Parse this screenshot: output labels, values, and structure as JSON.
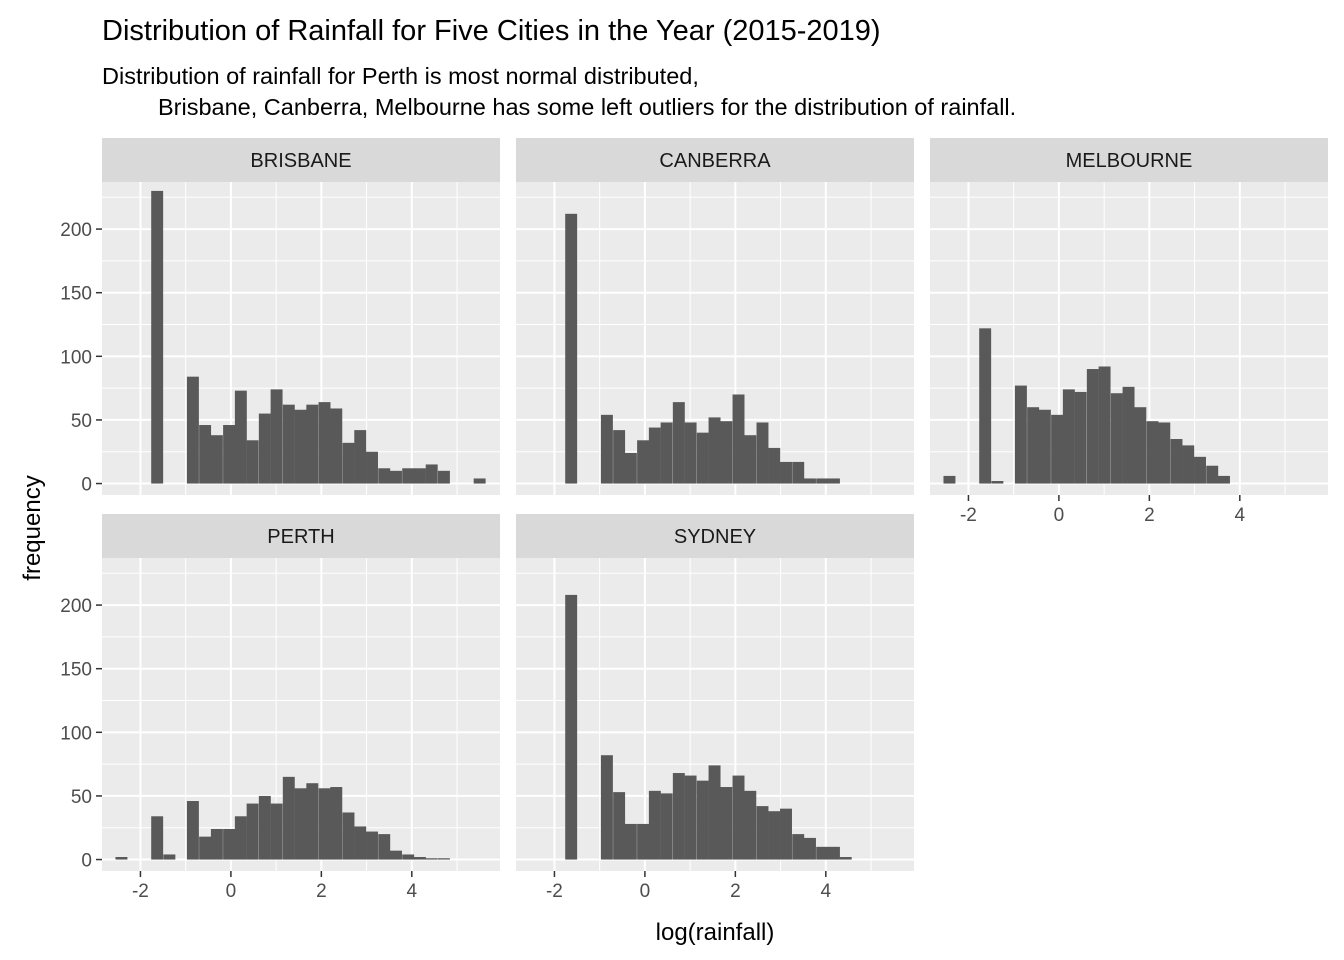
{
  "chart_data": {
    "type": "histogram",
    "layout": "facet_wrap",
    "title": "Distribution of Rainfall for Five Cities in the Year (2015-2019)",
    "subtitle_lines": [
      "Distribution of rainfall for Perth is most normal distributed,",
      "Brisbane, Canberra, Melbourne has some left outliers for the distribution of rainfall."
    ],
    "xlabel": "log(rainfall)",
    "ylabel": "frequency",
    "xlim": [
      -2.85,
      5.95
    ],
    "ylim": [
      -9,
      237
    ],
    "x_ticks": [
      -2,
      0,
      2,
      4
    ],
    "x_tick_labels": [
      "-2",
      "0",
      "2",
      "4"
    ],
    "y_ticks": [
      0,
      50,
      100,
      150,
      200
    ],
    "y_tick_labels": [
      "0",
      "50",
      "100",
      "150",
      "200"
    ],
    "bin_width": 0.264,
    "bin_centers": [
      -2.42,
      -2.16,
      -1.89,
      -1.63,
      -1.36,
      -1.1,
      -0.84,
      -0.57,
      -0.31,
      -0.04,
      0.22,
      0.48,
      0.75,
      1.01,
      1.28,
      1.54,
      1.8,
      2.07,
      2.33,
      2.6,
      2.86,
      3.12,
      3.39,
      3.65,
      3.92,
      4.18,
      4.44,
      4.71,
      4.97,
      5.24,
      5.5
    ],
    "bar_color": "#595959",
    "panel_background": "#ebebeb",
    "strip_background": "#d9d9d9",
    "grid": "white",
    "series": [
      {
        "name": "BRISBANE",
        "values": [
          0,
          0,
          0,
          230,
          0,
          0,
          84,
          46,
          38,
          46,
          73,
          34,
          55,
          74,
          62,
          58,
          62,
          64,
          59,
          32,
          42,
          25,
          12,
          10,
          12,
          12,
          15,
          10,
          0,
          0,
          4
        ]
      },
      {
        "name": "CANBERRA",
        "values": [
          0,
          0,
          0,
          212,
          0,
          0,
          54,
          42,
          24,
          34,
          44,
          48,
          64,
          48,
          40,
          52,
          49,
          70,
          38,
          48,
          28,
          17,
          17,
          4,
          4,
          4,
          0,
          0,
          0,
          0,
          0
        ]
      },
      {
        "name": "MELBOURNE",
        "values": [
          6,
          0,
          0,
          122,
          2,
          0,
          77,
          60,
          58,
          54,
          74,
          72,
          90,
          92,
          71,
          76,
          60,
          49,
          48,
          35,
          30,
          21,
          14,
          6,
          0,
          0,
          0,
          0,
          0,
          0,
          0
        ]
      },
      {
        "name": "PERTH",
        "values": [
          2,
          0,
          0,
          34,
          4,
          0,
          46,
          18,
          24,
          24,
          34,
          44,
          50,
          44,
          65,
          56,
          60,
          56,
          57,
          37,
          26,
          22,
          20,
          7,
          4,
          2,
          1,
          1,
          0,
          0,
          0
        ]
      },
      {
        "name": "SYDNEY",
        "values": [
          0,
          0,
          0,
          208,
          0,
          0,
          82,
          53,
          28,
          28,
          54,
          52,
          68,
          66,
          62,
          74,
          57,
          66,
          54,
          42,
          38,
          40,
          20,
          17,
          10,
          10,
          2,
          0,
          0,
          0,
          0
        ]
      }
    ]
  }
}
